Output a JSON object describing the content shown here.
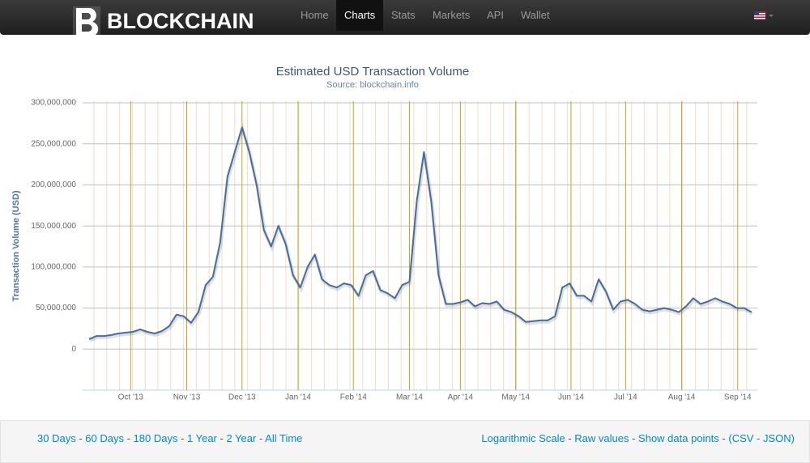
{
  "nav": {
    "brand": "BLOCKCHAIN",
    "items": [
      "Home",
      "Charts",
      "Stats",
      "Markets",
      "API",
      "Wallet"
    ],
    "active": "Charts"
  },
  "chart_data": {
    "type": "line",
    "title": "Estimated USD Transaction Volume",
    "subtitle": "Source: blockchain.info",
    "y_label": "Transaction Volume (USD)",
    "ylim": [
      -50000000,
      300000000
    ],
    "yticks": [
      {
        "value": 0,
        "label": "0"
      },
      {
        "value": 50000000,
        "label": "50,000,000"
      },
      {
        "value": 100000000,
        "label": "100,000,000"
      },
      {
        "value": 150000000,
        "label": "150,000,000"
      },
      {
        "value": 200000000,
        "label": "200,000,000"
      },
      {
        "value": 250000000,
        "label": "250,000,000"
      },
      {
        "value": 300000000,
        "label": "300,000,000"
      }
    ],
    "xlim": [
      -0.9,
      91.8
    ],
    "xticks": [
      {
        "value": 5.7,
        "label": "Oct '13"
      },
      {
        "value": 13.4,
        "label": "Nov '13"
      },
      {
        "value": 21,
        "label": "Dec '13"
      },
      {
        "value": 28.7,
        "label": "Jan '14"
      },
      {
        "value": 36.3,
        "label": "Feb '14"
      },
      {
        "value": 44,
        "label": "Mar '14"
      },
      {
        "value": 51,
        "label": "Apr '14"
      },
      {
        "value": 58.6,
        "label": "May '14"
      },
      {
        "value": 66.2,
        "label": "Jun '14"
      },
      {
        "value": 73.7,
        "label": "Jul '14"
      },
      {
        "value": 81.4,
        "label": "Aug '14"
      },
      {
        "value": 89.1,
        "label": "Sep '14"
      }
    ],
    "grid": true,
    "series": [
      {
        "name": "Transaction Volume (USD)",
        "color": "#476c9b",
        "values": [
          12000000,
          16000000,
          16000000,
          17000000,
          19000000,
          20000000,
          21000000,
          24000000,
          21000000,
          19000000,
          22000000,
          28000000,
          42000000,
          40000000,
          32000000,
          45000000,
          78000000,
          88000000,
          130000000,
          210000000,
          240000000,
          270000000,
          240000000,
          200000000,
          145000000,
          125000000,
          150000000,
          128000000,
          90000000,
          75000000,
          100000000,
          115000000,
          85000000,
          78000000,
          75000000,
          80000000,
          78000000,
          65000000,
          90000000,
          95000000,
          72000000,
          68000000,
          62000000,
          78000000,
          82000000,
          180000000,
          240000000,
          180000000,
          90000000,
          55000000,
          55000000,
          57000000,
          60000000,
          52000000,
          56000000,
          55000000,
          58000000,
          48000000,
          45000000,
          40000000,
          33000000,
          34000000,
          35000000,
          35000000,
          40000000,
          75000000,
          80000000,
          65000000,
          65000000,
          58000000,
          85000000,
          70000000,
          48000000,
          58000000,
          60000000,
          55000000,
          48000000,
          46000000,
          48000000,
          50000000,
          48000000,
          45000000,
          52000000,
          62000000,
          55000000,
          58000000,
          62000000,
          58000000,
          55000000,
          50000000,
          50000000,
          45000000
        ]
      }
    ]
  },
  "footer": {
    "ranges": [
      "30 Days",
      "60 Days",
      "180 Days",
      "1 Year",
      "2 Year",
      "All Time"
    ],
    "options": [
      "Logarithmic Scale",
      "Raw values",
      "Show data points"
    ],
    "formats": [
      "CSV",
      "JSON"
    ]
  }
}
